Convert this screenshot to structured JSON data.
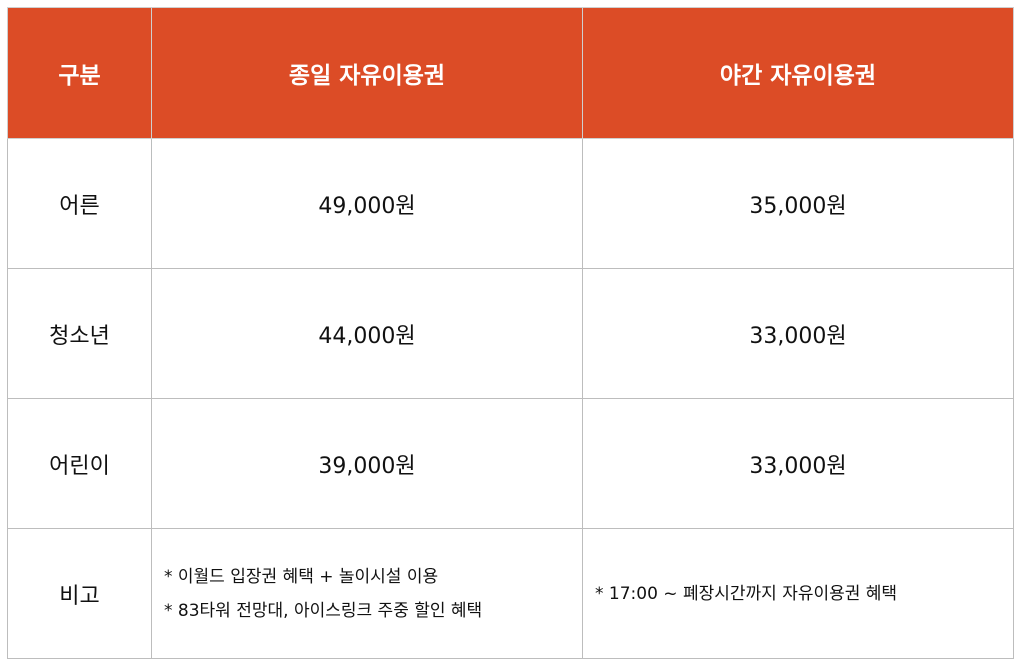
{
  "header": {
    "category": "구분",
    "full_day": "종일 자유이용권",
    "night": "야간 자유이용권"
  },
  "rows": [
    {
      "category": "어른",
      "full_day": "49,000원",
      "night": "35,000원"
    },
    {
      "category": "청소년",
      "full_day": "44,000원",
      "night": "33,000원"
    },
    {
      "category": "어린이",
      "full_day": "39,000원",
      "night": "33,000원"
    }
  ],
  "notes": {
    "category": "비고",
    "full_day": [
      "* 이월드 입장권 혜택 + 놀이시설 이용",
      "* 83타워 전망대, 아이스링크 주중 할인 혜택"
    ],
    "night": [
      "* 17:00 ~ 폐장시간까지 자유이용권 혜택"
    ]
  },
  "colors": {
    "header_bg": "#dc4c26",
    "header_text": "#ffffff",
    "border": "#bdbdbd"
  }
}
